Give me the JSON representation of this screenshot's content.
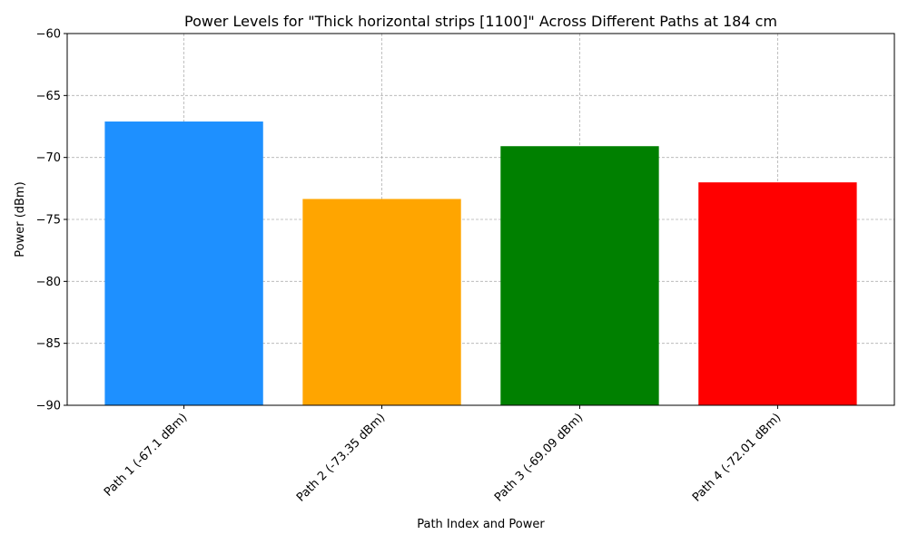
{
  "chart_data": {
    "type": "bar",
    "title": "Power Levels for \"Thick horizontal strips [1100]\" Across Different Paths at 184 cm",
    "xlabel": "Path Index and Power",
    "ylabel": "Power (dBm)",
    "categories": [
      "Path 1 (-67.1 dBm)",
      "Path 2 (-73.35 dBm)",
      "Path 3 (-69.09 dBm)",
      "Path 4 (-72.01 dBm)"
    ],
    "values": [
      -67.1,
      -73.35,
      -69.09,
      -72.01
    ],
    "colors": [
      "#1e90ff",
      "#ffa500",
      "#008000",
      "#ff0000"
    ],
    "ylim": [
      -90,
      -60
    ],
    "yticks": [
      -90,
      -85,
      -80,
      -75,
      -70,
      -65,
      -60
    ],
    "ytick_labels": [
      "−90",
      "−85",
      "−80",
      "−75",
      "−70",
      "−65",
      "−60"
    ],
    "grid": true,
    "legend": "none"
  }
}
